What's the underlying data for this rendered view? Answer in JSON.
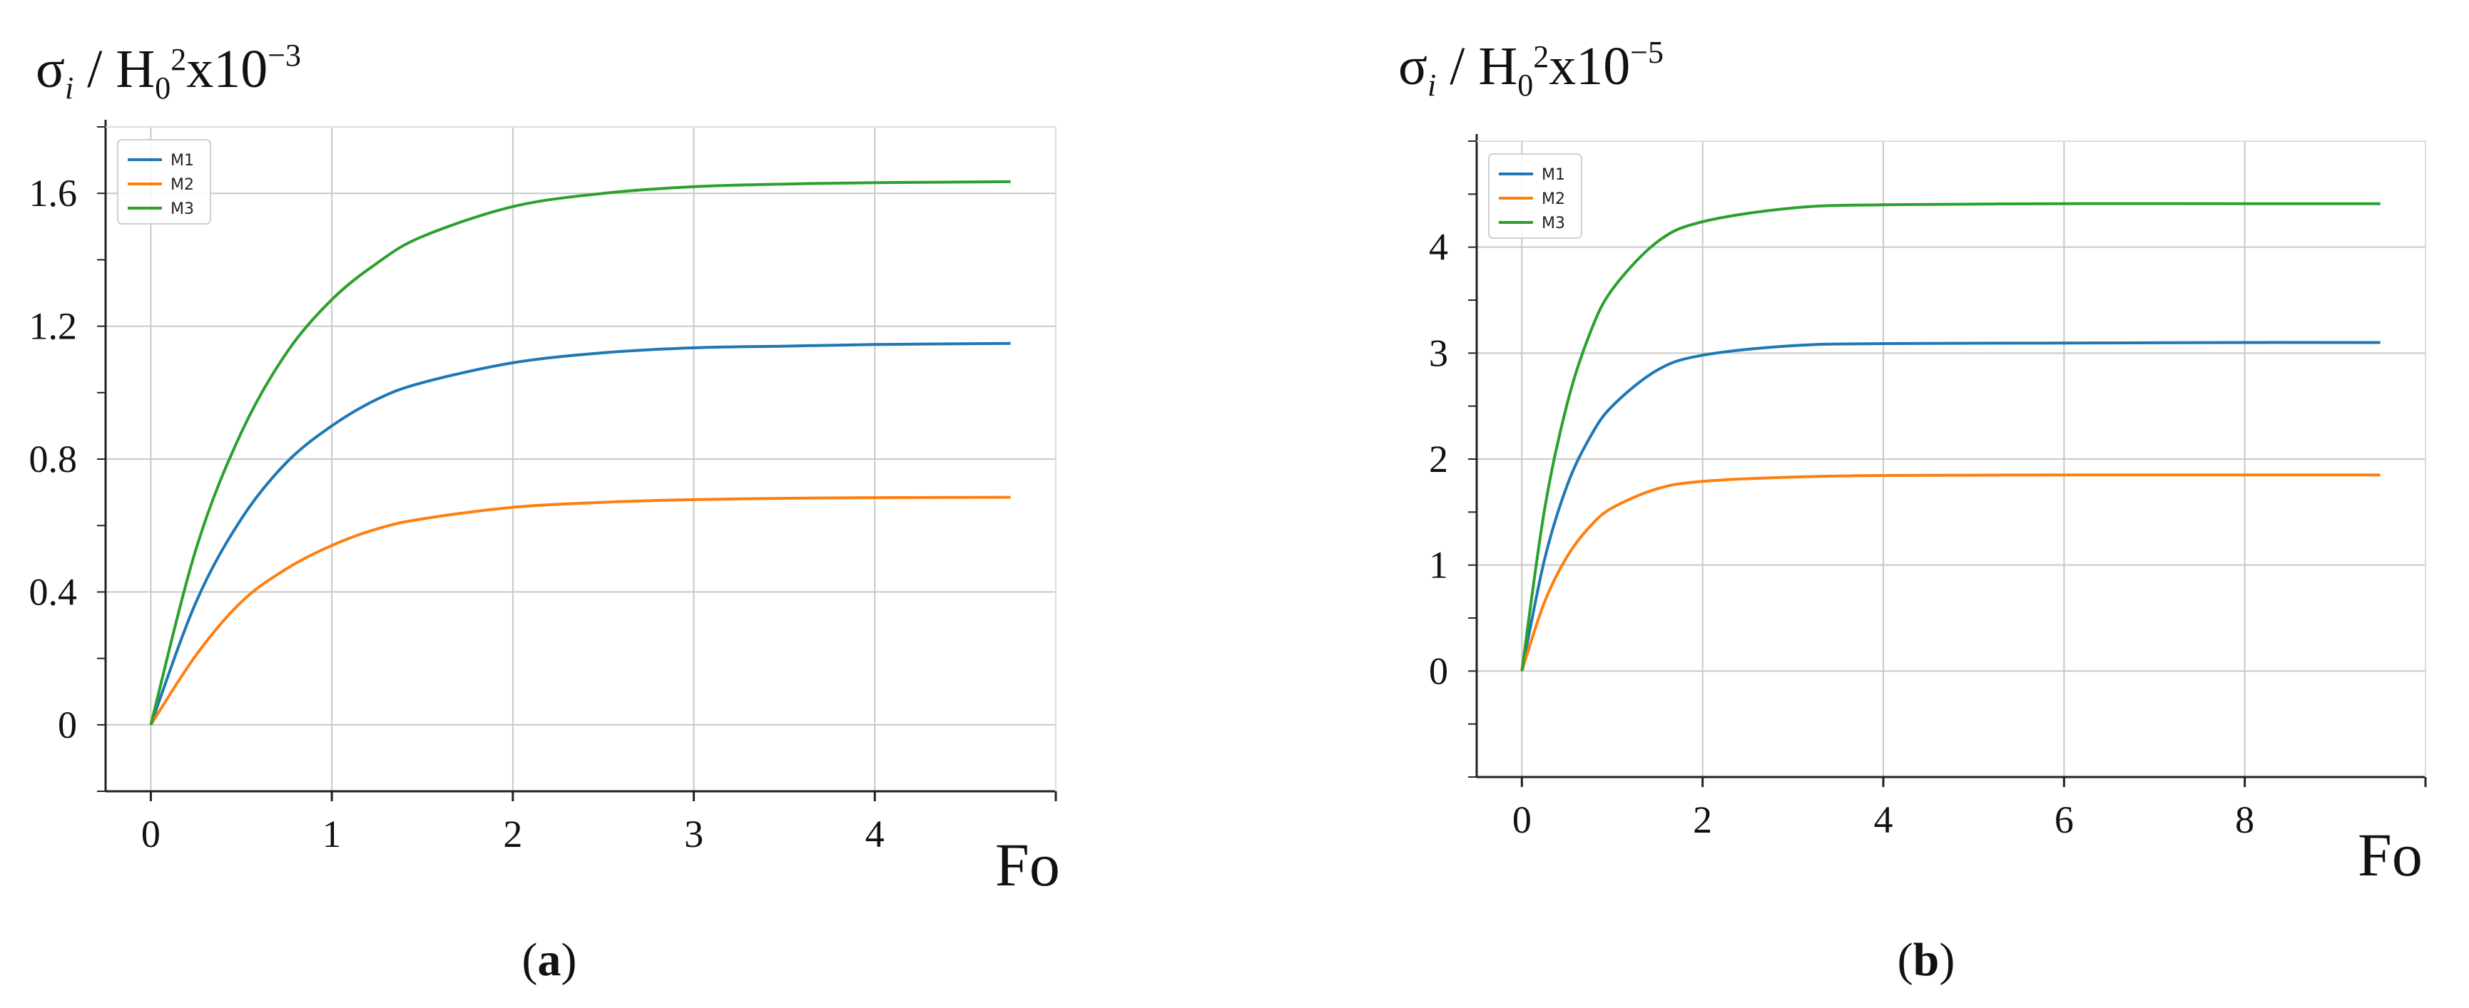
{
  "chart_data": [
    {
      "panel": "a",
      "type": "line",
      "caption": "(a)",
      "ylabel": {
        "sym": "σ",
        "sub": "i",
        "sep": " / H",
        "sub0": "0",
        "sup2": "2",
        "mult": "x10",
        "exp": "−3"
      },
      "xlabel": "Fo",
      "xlim": [
        -0.25,
        5.0
      ],
      "ylim": [
        -0.2,
        1.8
      ],
      "xticks": [
        0,
        1,
        2,
        3,
        4
      ],
      "xtick_labels": [
        "0",
        "1",
        "2",
        "3",
        "4"
      ],
      "yticks": [
        0,
        0.4,
        0.8,
        1.2,
        1.6
      ],
      "ytick_labels": [
        "0",
        "0.4",
        "0.8",
        "1.2",
        "1.6"
      ],
      "grid": true,
      "legend": "top-left",
      "x": [
        0,
        0.25,
        0.5,
        0.75,
        1.0,
        1.25,
        1.5,
        2.0,
        2.5,
        3.0,
        3.5,
        4.0,
        4.75
      ],
      "series": [
        {
          "name": "M1",
          "color": "#1f77b4",
          "values": [
            0,
            0.37,
            0.62,
            0.79,
            0.9,
            0.98,
            1.03,
            1.09,
            1.12,
            1.135,
            1.14,
            1.145,
            1.148
          ]
        },
        {
          "name": "M2",
          "color": "#ff7f0e",
          "values": [
            0,
            0.21,
            0.37,
            0.47,
            0.54,
            0.59,
            0.62,
            0.655,
            0.67,
            0.678,
            0.682,
            0.684,
            0.685
          ]
        },
        {
          "name": "M3",
          "color": "#2ca02c",
          "values": [
            0,
            0.53,
            0.88,
            1.12,
            1.28,
            1.39,
            1.47,
            1.56,
            1.6,
            1.62,
            1.628,
            1.632,
            1.635
          ]
        }
      ]
    },
    {
      "panel": "b",
      "type": "line",
      "caption": "(b)",
      "ylabel": {
        "sym": "σ",
        "sub": "i",
        "sep": " / H",
        "sub0": "0",
        "sup2": "2",
        "mult": "x10",
        "exp": "−5"
      },
      "xlabel": "Fo",
      "xlim": [
        -0.5,
        10.0
      ],
      "ylim": [
        -1.0,
        5.0
      ],
      "xticks": [
        0,
        2,
        4,
        6,
        8
      ],
      "xtick_labels": [
        "0",
        "2",
        "4",
        "6",
        "8"
      ],
      "yticks": [
        0,
        1,
        2,
        3,
        4
      ],
      "ytick_labels": [
        "0",
        "1",
        "2",
        "3",
        "4"
      ],
      "grid": true,
      "legend": "top-left",
      "x": [
        0,
        0.25,
        0.5,
        0.75,
        1.0,
        1.5,
        2.0,
        3.0,
        4.0,
        6.0,
        8.0,
        9.5
      ],
      "series": [
        {
          "name": "M1",
          "color": "#1f77b4",
          "values": [
            0,
            1.05,
            1.75,
            2.2,
            2.5,
            2.84,
            2.98,
            3.07,
            3.09,
            3.095,
            3.1,
            3.1
          ]
        },
        {
          "name": "M2",
          "color": "#ff7f0e",
          "values": [
            0,
            0.65,
            1.08,
            1.36,
            1.54,
            1.72,
            1.79,
            1.83,
            1.845,
            1.85,
            1.85,
            1.85
          ]
        },
        {
          "name": "M3",
          "color": "#2ca02c",
          "values": [
            0,
            1.52,
            2.52,
            3.18,
            3.6,
            4.05,
            4.24,
            4.37,
            4.4,
            4.41,
            4.41,
            4.41
          ]
        }
      ]
    }
  ]
}
